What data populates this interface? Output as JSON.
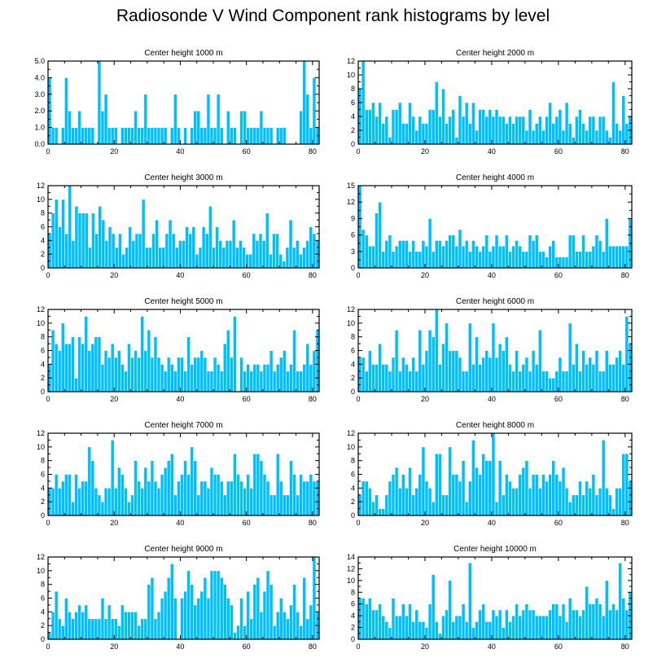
{
  "title": "Radiosonde V Wind Component rank histograms by level",
  "colors": {
    "bar": "#00bfff",
    "bar_edge": "#ffffff",
    "axis": "#000000"
  },
  "chart_data": [
    {
      "type": "bar",
      "title": "Center height 1000 m",
      "xlim": [
        0,
        82
      ],
      "xticks": [
        0,
        20,
        40,
        60,
        80
      ],
      "ylim": [
        0,
        5
      ],
      "yticks": [
        0.0,
        1.0,
        2.0,
        3.0,
        4.0,
        5.0
      ],
      "ytick_labels": [
        "0.0",
        "1.0",
        "2.0",
        "3.0",
        "4.0",
        "5.0"
      ],
      "values": [
        4,
        1,
        1,
        0,
        1,
        4,
        2,
        1,
        1,
        2,
        1,
        1,
        1,
        1,
        0,
        5,
        2,
        3,
        1,
        1,
        1,
        0,
        1,
        1,
        1,
        1,
        2,
        1,
        1,
        3,
        1,
        1,
        1,
        1,
        1,
        1,
        0,
        1,
        3,
        1,
        0,
        1,
        0,
        1,
        2,
        2,
        1,
        1,
        3,
        1,
        1,
        3,
        1,
        0,
        2,
        1,
        1,
        0,
        2,
        2,
        1,
        1,
        1,
        1,
        2,
        1,
        1,
        1,
        0,
        1,
        1,
        1,
        0,
        0,
        0,
        0,
        2,
        5,
        3,
        1,
        4,
        1
      ]
    },
    {
      "type": "bar",
      "title": "Center height 2000 m",
      "xlim": [
        0,
        82
      ],
      "xticks": [
        0,
        20,
        40,
        60,
        80
      ],
      "ylim": [
        0,
        12
      ],
      "yticks": [
        0,
        2,
        4,
        6,
        8,
        10,
        12
      ],
      "ytick_labels": [
        "0",
        "2",
        "4",
        "6",
        "8",
        "10",
        "12"
      ],
      "values": [
        8,
        12,
        5,
        5,
        6,
        4,
        6,
        3,
        4,
        1,
        5,
        5,
        6,
        3,
        3,
        6,
        4,
        2,
        4,
        3,
        3,
        5,
        5,
        9,
        4,
        8,
        3,
        4,
        5,
        1,
        7,
        4,
        6,
        3,
        6,
        2,
        5,
        5,
        4,
        5,
        4,
        5,
        4,
        4,
        3,
        4,
        3,
        4,
        4,
        4,
        2,
        5,
        2,
        3,
        4,
        2,
        4,
        6,
        3,
        4,
        5,
        2,
        6,
        3,
        1,
        4,
        5,
        3,
        2,
        4,
        4,
        2,
        4,
        4,
        2,
        1,
        9,
        3,
        2,
        7,
        3,
        4
      ]
    },
    {
      "type": "bar",
      "title": "Center height 3000 m",
      "xlim": [
        0,
        82
      ],
      "xticks": [
        0,
        20,
        40,
        60,
        80
      ],
      "ylim": [
        0,
        12
      ],
      "yticks": [
        0,
        2,
        4,
        6,
        8,
        10,
        12
      ],
      "ytick_labels": [
        "0",
        "2",
        "4",
        "6",
        "8",
        "10",
        "12"
      ],
      "values": [
        5,
        8,
        10,
        6,
        10,
        5,
        12,
        4,
        9,
        8,
        8,
        8,
        3,
        8,
        5,
        9,
        7,
        4,
        6,
        5,
        3,
        5,
        2,
        3,
        6,
        4,
        5,
        5,
        10,
        3,
        3,
        5,
        7,
        3,
        3,
        5,
        7,
        5,
        3,
        4,
        4,
        6,
        5,
        6,
        2,
        3,
        6,
        5,
        9,
        3,
        6,
        4,
        3,
        4,
        4,
        7,
        3,
        4,
        3,
        2,
        2,
        5,
        4,
        5,
        4,
        8,
        2,
        5,
        5,
        2,
        1,
        3,
        7,
        3,
        4,
        2,
        3,
        4,
        6,
        5,
        4
      ]
    },
    {
      "type": "bar",
      "title": "Center height 4000 m",
      "xlim": [
        0,
        82
      ],
      "xticks": [
        0,
        20,
        40,
        60,
        80
      ],
      "ylim": [
        0,
        15
      ],
      "yticks": [
        0,
        3,
        6,
        9,
        12,
        15
      ],
      "ytick_labels": [
        "0",
        "3",
        "6",
        "9",
        "12",
        "15"
      ],
      "values": [
        15,
        7,
        6,
        4,
        4,
        10,
        12,
        3,
        5,
        6,
        3,
        4,
        5,
        5,
        5,
        3,
        5,
        3,
        3,
        5,
        4,
        9,
        3,
        5,
        5,
        4,
        5,
        6,
        6,
        4,
        7,
        4,
        5,
        3,
        5,
        4,
        3,
        4,
        6,
        3,
        4,
        6,
        4,
        4,
        6,
        3,
        4,
        5,
        4,
        3,
        3,
        6,
        5,
        6,
        3,
        3,
        2,
        4,
        5,
        2,
        2,
        2,
        2,
        6,
        6,
        3,
        3,
        6,
        3,
        3,
        4,
        6,
        5,
        3,
        9,
        4,
        4,
        4,
        4,
        4,
        4,
        9
      ]
    },
    {
      "type": "bar",
      "title": "Center height 5000 m",
      "xlim": [
        0,
        82
      ],
      "xticks": [
        0,
        20,
        40,
        60,
        80
      ],
      "ylim": [
        0,
        12
      ],
      "yticks": [
        0,
        2,
        4,
        6,
        8,
        10,
        12
      ],
      "ytick_labels": [
        "0",
        "2",
        "4",
        "6",
        "8",
        "10",
        "12"
      ],
      "values": [
        4,
        9,
        7,
        6,
        10,
        7,
        7,
        8,
        2,
        8,
        7,
        11,
        6,
        7,
        8,
        8,
        4,
        6,
        5,
        7,
        5,
        6,
        4,
        3,
        7,
        5,
        6,
        5,
        11,
        6,
        9,
        5,
        8,
        5,
        4,
        3,
        5,
        4,
        3,
        5,
        5,
        3,
        8,
        4,
        5,
        5,
        6,
        5,
        3,
        3,
        5,
        4,
        3,
        7,
        9,
        5,
        11,
        0,
        5,
        3,
        4,
        3,
        4,
        4,
        3,
        4,
        4,
        6,
        3,
        4,
        5,
        6,
        3,
        4,
        9,
        3,
        3,
        4,
        7,
        4,
        6,
        9
      ]
    },
    {
      "type": "bar",
      "title": "Center height 6000 m",
      "xlim": [
        0,
        82
      ],
      "xticks": [
        0,
        20,
        40,
        60,
        80
      ],
      "ylim": [
        0,
        12
      ],
      "yticks": [
        0,
        2,
        4,
        6,
        8,
        10,
        12
      ],
      "ytick_labels": [
        "0",
        "2",
        "4",
        "6",
        "8",
        "10",
        "12"
      ],
      "values": [
        5,
        5,
        3,
        6,
        4,
        4,
        7,
        4,
        4,
        3,
        5,
        9,
        3,
        5,
        4,
        3,
        5,
        3,
        9,
        4,
        6,
        9,
        8,
        12,
        4,
        7,
        10,
        6,
        6,
        6,
        5,
        3,
        3,
        10,
        4,
        8,
        4,
        5,
        6,
        5,
        10,
        5,
        7,
        6,
        8,
        4,
        3,
        6,
        3,
        4,
        5,
        3,
        6,
        4,
        9,
        3,
        3,
        2,
        2,
        3,
        5,
        3,
        3,
        10,
        4,
        7,
        3,
        6,
        4,
        5,
        4,
        6,
        3,
        3,
        6,
        4,
        4,
        5,
        6,
        4,
        11,
        7
      ]
    },
    {
      "type": "bar",
      "title": "Center height 7000 m",
      "xlim": [
        0,
        82
      ],
      "xticks": [
        0,
        20,
        40,
        60,
        80
      ],
      "ylim": [
        0,
        12
      ],
      "yticks": [
        0,
        2,
        4,
        6,
        8,
        10,
        12
      ],
      "ytick_labels": [
        "0",
        "2",
        "4",
        "6",
        "8",
        "10",
        "12"
      ],
      "values": [
        4,
        4,
        6,
        4,
        5,
        6,
        6,
        2,
        6,
        4,
        5,
        5,
        10,
        8,
        4,
        3,
        2,
        4,
        4,
        11,
        4,
        7,
        6,
        4,
        2,
        3,
        8,
        5,
        4,
        7,
        5,
        8,
        5,
        4,
        6,
        7,
        8,
        9,
        3,
        5,
        6,
        8,
        6,
        10,
        8,
        3,
        5,
        5,
        4,
        7,
        6,
        6,
        5,
        3,
        5,
        5,
        9,
        6,
        5,
        4,
        6,
        4,
        9,
        9,
        8,
        6,
        5,
        3,
        3,
        9,
        5,
        3,
        3,
        8,
        6,
        3,
        6,
        5,
        5,
        6,
        5,
        5
      ]
    },
    {
      "type": "bar",
      "title": "Center height 8000 m",
      "xlim": [
        0,
        82
      ],
      "xticks": [
        0,
        20,
        40,
        60,
        80
      ],
      "ylim": [
        0,
        12
      ],
      "yticks": [
        0,
        2,
        4,
        6,
        8,
        10,
        12
      ],
      "ytick_labels": [
        "0",
        "2",
        "4",
        "6",
        "8",
        "10",
        "12"
      ],
      "values": [
        3,
        5,
        5,
        4,
        2,
        3,
        1,
        1,
        3,
        5,
        6,
        7,
        4,
        6,
        4,
        7,
        3,
        4,
        6,
        10,
        5,
        4,
        2,
        9,
        9,
        3,
        3,
        10,
        6,
        6,
        5,
        8,
        2,
        5,
        11,
        7,
        6,
        9,
        8,
        8,
        12,
        2,
        8,
        3,
        6,
        5,
        4,
        4,
        6,
        7,
        8,
        4,
        6,
        6,
        4,
        6,
        5,
        6,
        8,
        6,
        5,
        7,
        4,
        2,
        3,
        3,
        5,
        3,
        5,
        4,
        6,
        3,
        4,
        11,
        4,
        3,
        1,
        4,
        4,
        9,
        9,
        5
      ]
    },
    {
      "type": "bar",
      "title": "Center height 9000 m",
      "xlim": [
        0,
        82
      ],
      "xticks": [
        0,
        20,
        40,
        60,
        80
      ],
      "ylim": [
        0,
        12
      ],
      "yticks": [
        0,
        2,
        4,
        6,
        8,
        10,
        12
      ],
      "ytick_labels": [
        "0",
        "2",
        "4",
        "6",
        "8",
        "10",
        "12"
      ],
      "values": [
        1,
        4,
        7,
        3,
        2,
        6,
        4,
        3,
        4,
        5,
        4,
        5,
        3,
        3,
        3,
        3,
        6,
        3,
        5,
        3,
        3,
        2,
        5,
        4,
        4,
        4,
        4,
        2,
        3,
        3,
        8,
        9,
        3,
        4,
        6,
        7,
        9,
        11,
        6,
        0,
        6,
        7,
        10,
        8,
        5,
        6,
        7,
        9,
        6,
        10,
        10,
        10,
        9,
        8,
        6,
        5,
        1,
        2,
        6,
        2,
        7,
        3,
        8,
        9,
        4,
        7,
        10,
        8,
        2,
        4,
        6,
        4,
        3,
        5,
        8,
        4,
        2,
        9,
        3,
        5,
        12,
        4
      ]
    },
    {
      "type": "bar",
      "title": "Center height 10000 m",
      "xlim": [
        0,
        82
      ],
      "xticks": [
        0,
        20,
        40,
        60,
        80
      ],
      "ylim": [
        0,
        14
      ],
      "yticks": [
        0,
        2,
        4,
        6,
        8,
        10,
        12,
        14
      ],
      "ytick_labels": [
        "0",
        "2",
        "4",
        "6",
        "8",
        "10",
        "12",
        "14"
      ],
      "values": [
        7,
        7,
        6,
        7,
        5,
        5,
        6,
        4,
        3,
        2,
        7,
        4,
        4,
        6,
        4,
        6,
        3,
        5,
        3,
        3,
        2,
        6,
        11,
        3,
        1,
        4,
        5,
        10,
        3,
        4,
        4,
        6,
        3,
        13,
        2,
        3,
        5,
        6,
        3,
        3,
        5,
        4,
        5,
        2,
        5,
        3,
        4,
        6,
        4,
        5,
        6,
        5,
        5,
        4,
        4,
        4,
        4,
        5,
        6,
        6,
        4,
        6,
        3,
        7,
        5,
        5,
        4,
        5,
        9,
        6,
        6,
        7,
        6,
        4,
        10,
        5,
        6,
        5,
        13,
        7,
        5,
        8
      ]
    }
  ]
}
